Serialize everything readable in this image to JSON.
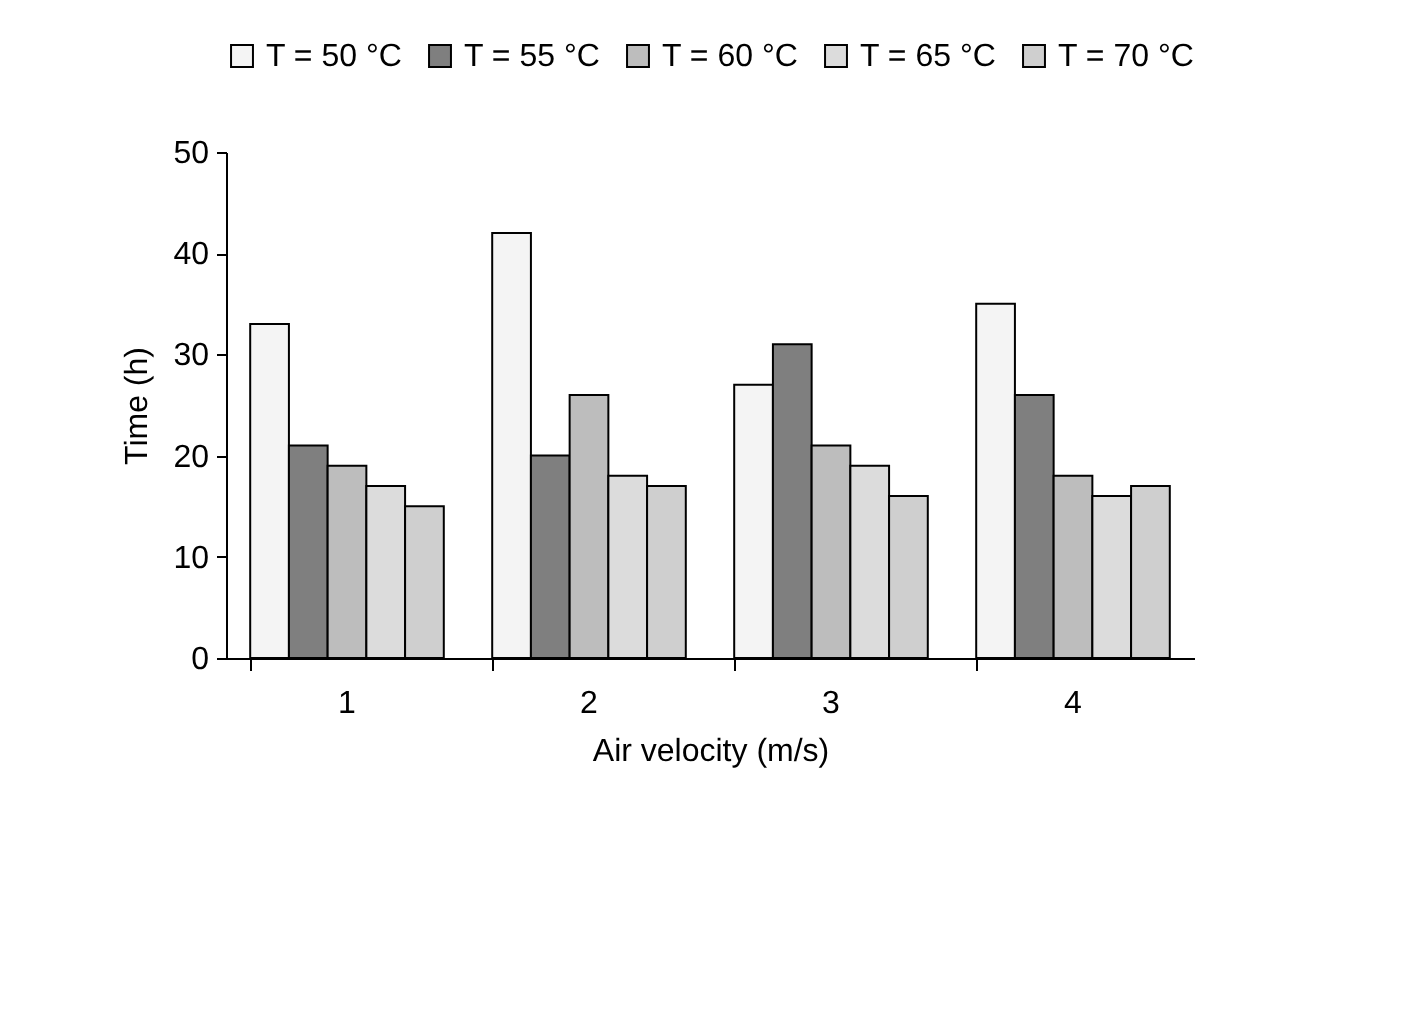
{
  "chart_data": {
    "type": "bar",
    "xlabel": "Air velocity (m/s)",
    "ylabel": "Time (h)",
    "categories": [
      "1",
      "2",
      "3",
      "4"
    ],
    "series": [
      {
        "name": "T = 50 °C",
        "color": "#f4f4f4",
        "values": [
          33,
          42,
          27,
          35
        ]
      },
      {
        "name": "T = 55 °C",
        "color": "#7f7f7f",
        "values": [
          21,
          20,
          31,
          26
        ]
      },
      {
        "name": "T = 60 °C",
        "color": "#bdbdbd",
        "values": [
          19,
          26,
          21,
          18
        ]
      },
      {
        "name": "T = 65 °C",
        "color": "#dcdcdc",
        "values": [
          17,
          18,
          19,
          16
        ]
      },
      {
        "name": "T = 70 °C",
        "color": "#cfcfcf",
        "values": [
          15,
          17,
          16,
          17
        ]
      }
    ],
    "ylim": [
      0,
      50
    ],
    "yticks": [
      0,
      10,
      20,
      30,
      40,
      50
    ],
    "grid": false,
    "legend": "top"
  }
}
